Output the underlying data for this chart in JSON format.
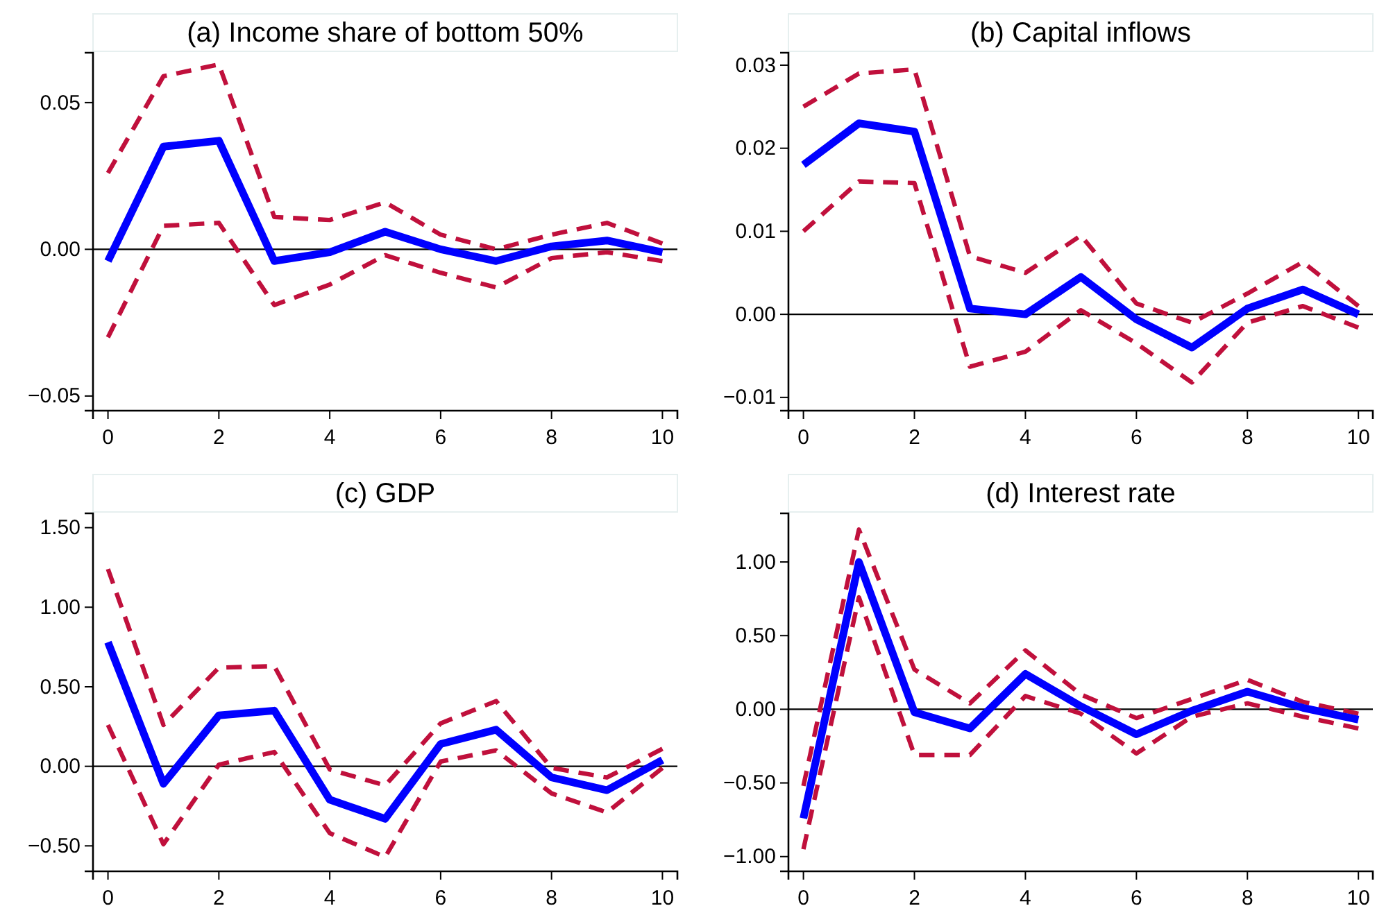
{
  "chart_data": [
    {
      "type": "line",
      "title": "(a) Income share of bottom 50%",
      "x": [
        0,
        1,
        2,
        3,
        4,
        5,
        6,
        7,
        8,
        9,
        10
      ],
      "xlim": [
        -0.27,
        10.27
      ],
      "xticks": [
        0,
        2,
        4,
        6,
        8,
        10
      ],
      "ylim": [
        -0.055,
        0.067
      ],
      "yticks": [
        {
          "value": -0.05,
          "label": "−0.05"
        },
        {
          "value": 0,
          "label": "0.00"
        },
        {
          "value": 0.05,
          "label": "0.05"
        }
      ],
      "ref_lines": [
        {
          "axis": "y",
          "value": 0,
          "color": "#000000"
        }
      ],
      "grid": false,
      "series": [
        {
          "color": "#c0103c",
          "line_style": "dashed",
          "values": [
            0.026,
            0.059,
            0.063,
            0.011,
            0.01,
            0.016,
            0.005,
            0.0,
            0.005,
            0.009,
            0.002
          ]
        },
        {
          "color": "#c0103c",
          "line_style": "dashed",
          "values": [
            -0.03,
            0.008,
            0.009,
            -0.019,
            -0.012,
            -0.002,
            -0.008,
            -0.013,
            -0.003,
            -0.001,
            -0.004
          ]
        },
        {
          "color": "#0000ff",
          "line_style": "solid",
          "values": [
            -0.004,
            0.035,
            0.037,
            -0.004,
            -0.001,
            0.006,
            0.0,
            -0.004,
            0.001,
            0.003,
            -0.001
          ]
        }
      ]
    },
    {
      "type": "line",
      "title": "(b) Capital inflows",
      "x": [
        0,
        1,
        2,
        3,
        4,
        5,
        6,
        7,
        8,
        9,
        10
      ],
      "xlim": [
        -0.27,
        10.26
      ],
      "xticks": [
        0,
        2,
        4,
        6,
        8,
        10
      ],
      "ylim": [
        -0.0116,
        0.0315
      ],
      "yticks": [
        {
          "value": -0.01,
          "label": "−0.01"
        },
        {
          "value": 0,
          "label": "0.00"
        },
        {
          "value": 0.01,
          "label": "0.01"
        },
        {
          "value": 0.02,
          "label": "0.02"
        },
        {
          "value": 0.03,
          "label": "0.03"
        }
      ],
      "ref_lines": [
        {
          "axis": "y",
          "value": 0,
          "color": "#000000"
        }
      ],
      "grid": false,
      "series": [
        {
          "color": "#c0103c",
          "line_style": "dashed",
          "values": [
            0.025,
            0.029,
            0.0295,
            0.007,
            0.005,
            0.0095,
            0.0013,
            -0.001,
            0.0025,
            0.0063,
            0.001
          ]
        },
        {
          "color": "#c0103c",
          "line_style": "dashed",
          "values": [
            0.01,
            0.016,
            0.0158,
            -0.0063,
            -0.0045,
            0.0005,
            -0.0035,
            -0.0082,
            -0.001,
            0.001,
            -0.0016
          ]
        },
        {
          "color": "#0000ff",
          "line_style": "solid",
          "values": [
            0.018,
            0.023,
            0.022,
            0.0007,
            0.0,
            0.0045,
            -0.0006,
            -0.004,
            0.0007,
            0.003,
            0.0
          ]
        }
      ]
    },
    {
      "type": "line",
      "title": "(c) GDP",
      "x": [
        0,
        1,
        2,
        3,
        4,
        5,
        6,
        7,
        8,
        9,
        10
      ],
      "xlim": [
        -0.27,
        10.27
      ],
      "xticks": [
        0,
        2,
        4,
        6,
        8,
        10
      ],
      "ylim": [
        -0.66,
        1.59
      ],
      "yticks": [
        {
          "value": -0.5,
          "label": "−0.50"
        },
        {
          "value": 0,
          "label": "0.00"
        },
        {
          "value": 0.5,
          "label": "0.50"
        },
        {
          "value": 1,
          "label": "1.00"
        },
        {
          "value": 1.5,
          "label": "1.50"
        }
      ],
      "ref_lines": [
        {
          "axis": "y",
          "value": 0,
          "color": "#000000"
        }
      ],
      "grid": false,
      "series": [
        {
          "color": "#c0103c",
          "line_style": "dashed",
          "values": [
            1.24,
            0.26,
            0.62,
            0.63,
            -0.02,
            -0.12,
            0.27,
            0.41,
            -0.01,
            -0.07,
            0.11
          ]
        },
        {
          "color": "#c0103c",
          "line_style": "dashed",
          "values": [
            0.26,
            -0.49,
            0.01,
            0.09,
            -0.42,
            -0.57,
            0.03,
            0.1,
            -0.17,
            -0.29,
            -0.01
          ]
        },
        {
          "color": "#0000ff",
          "line_style": "solid",
          "values": [
            0.78,
            -0.11,
            0.32,
            0.35,
            -0.21,
            -0.33,
            0.14,
            0.23,
            -0.07,
            -0.15,
            0.04
          ]
        }
      ]
    },
    {
      "type": "line",
      "title": "(d) Interest rate",
      "x": [
        0,
        1,
        2,
        3,
        4,
        5,
        6,
        7,
        8,
        9,
        10
      ],
      "xlim": [
        -0.27,
        10.26
      ],
      "xticks": [
        0,
        2,
        4,
        6,
        8,
        10
      ],
      "ylim": [
        -1.1,
        1.33
      ],
      "yticks": [
        {
          "value": -1,
          "label": "−1.00"
        },
        {
          "value": -0.5,
          "label": "−0.50"
        },
        {
          "value": 0,
          "label": "0.00"
        },
        {
          "value": 0.5,
          "label": "0.50"
        },
        {
          "value": 1,
          "label": "1.00"
        }
      ],
      "ref_lines": [
        {
          "axis": "y",
          "value": 0,
          "color": "#000000"
        }
      ],
      "grid": false,
      "series": [
        {
          "color": "#c0103c",
          "line_style": "dashed",
          "values": [
            -0.52,
            1.22,
            0.27,
            0.04,
            0.4,
            0.1,
            -0.06,
            0.07,
            0.2,
            0.05,
            -0.03
          ]
        },
        {
          "color": "#c0103c",
          "line_style": "dashed",
          "values": [
            -0.95,
            0.76,
            -0.31,
            -0.31,
            0.09,
            -0.03,
            -0.3,
            -0.05,
            0.04,
            -0.05,
            -0.13
          ]
        },
        {
          "color": "#0000ff",
          "line_style": "solid",
          "values": [
            -0.74,
            1.0,
            -0.02,
            -0.13,
            0.24,
            0.02,
            -0.17,
            -0.01,
            0.12,
            0.01,
            -0.07
          ]
        }
      ]
    }
  ]
}
